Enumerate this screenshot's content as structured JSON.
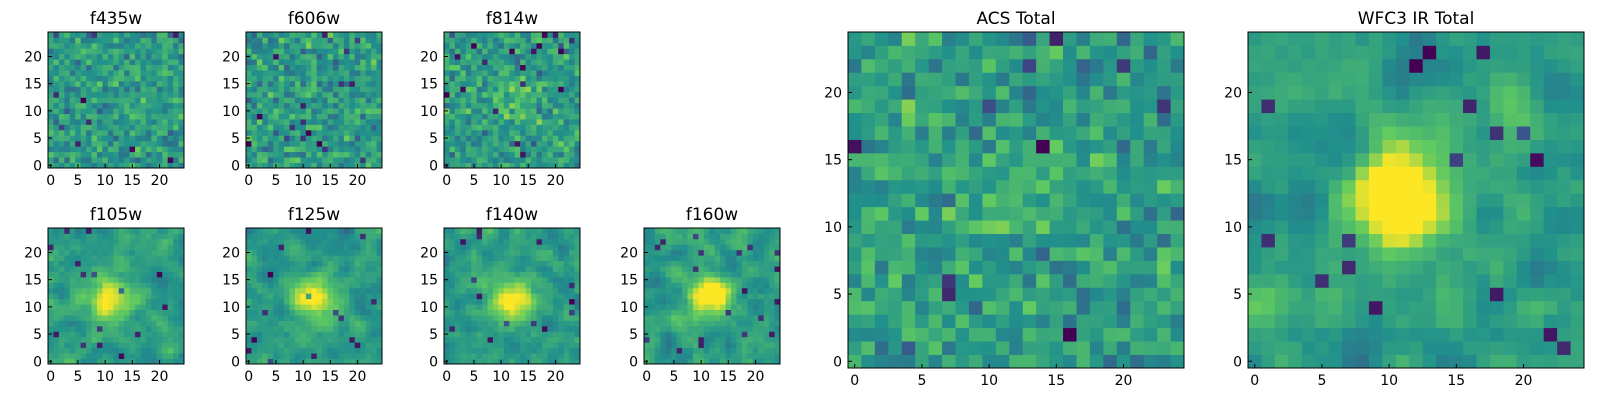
{
  "figure": {
    "colormap": "viridis",
    "palette": [
      "#440154",
      "#3b528b",
      "#21918c",
      "#5ec962",
      "#fde725"
    ]
  },
  "chart_data": [
    {
      "id": "f435w",
      "type": "heatmap",
      "title": "f435w",
      "grid_size": 25,
      "xticks": [
        0,
        5,
        10,
        15,
        20
      ],
      "yticks": [
        0,
        5,
        10,
        15,
        20
      ],
      "pattern": "noise",
      "source_strength": 0.0,
      "seed": 435
    },
    {
      "id": "f606w",
      "type": "heatmap",
      "title": "f606w",
      "grid_size": 25,
      "xticks": [
        0,
        5,
        10,
        15,
        20
      ],
      "yticks": [
        0,
        5,
        10,
        15,
        20
      ],
      "pattern": "noise",
      "source_strength": 0.0,
      "seed": 606
    },
    {
      "id": "f814w",
      "type": "heatmap",
      "title": "f814w",
      "grid_size": 25,
      "xticks": [
        0,
        5,
        10,
        15,
        20
      ],
      "yticks": [
        0,
        5,
        10,
        15,
        20
      ],
      "pattern": "noise",
      "source_strength": 0.15,
      "seed": 814
    },
    {
      "id": "f105w",
      "type": "heatmap",
      "title": "f105w",
      "grid_size": 25,
      "xticks": [
        0,
        5,
        10,
        15,
        20
      ],
      "yticks": [
        0,
        5,
        10,
        15,
        20
      ],
      "pattern": "source",
      "source_center": [
        11,
        11
      ],
      "source_strength": 0.45,
      "seed": 105
    },
    {
      "id": "f125w",
      "type": "heatmap",
      "title": "f125w",
      "grid_size": 25,
      "xticks": [
        0,
        5,
        10,
        15,
        20
      ],
      "yticks": [
        0,
        5,
        10,
        15,
        20
      ],
      "pattern": "source",
      "source_center": [
        12,
        12
      ],
      "source_strength": 0.5,
      "seed": 125
    },
    {
      "id": "f140w",
      "type": "heatmap",
      "title": "f140w",
      "grid_size": 25,
      "xticks": [
        0,
        5,
        10,
        15,
        20
      ],
      "yticks": [
        0,
        5,
        10,
        15,
        20
      ],
      "pattern": "source",
      "source_center": [
        12,
        11
      ],
      "source_strength": 0.5,
      "seed": 140
    },
    {
      "id": "f160w",
      "type": "heatmap",
      "title": "f160w",
      "grid_size": 25,
      "xticks": [
        0,
        5,
        10,
        15,
        20
      ],
      "yticks": [
        0,
        5,
        10,
        15,
        20
      ],
      "pattern": "source",
      "source_center": [
        12,
        12
      ],
      "source_strength": 0.55,
      "seed": 160
    },
    {
      "id": "acs-total",
      "type": "heatmap",
      "title": "ACS Total",
      "grid_size": 25,
      "xticks": [
        0,
        5,
        10,
        15,
        20
      ],
      "yticks": [
        0,
        5,
        10,
        15,
        20
      ],
      "pattern": "noise",
      "source_strength": 0.1,
      "seed": 999
    },
    {
      "id": "wfc3-ir-total",
      "type": "heatmap",
      "title": "WFC3 IR Total",
      "grid_size": 25,
      "xticks": [
        0,
        5,
        10,
        15,
        20
      ],
      "yticks": [
        0,
        5,
        10,
        15,
        20
      ],
      "pattern": "source",
      "source_center": [
        11,
        12
      ],
      "source_strength": 0.75,
      "seed": 777
    }
  ]
}
